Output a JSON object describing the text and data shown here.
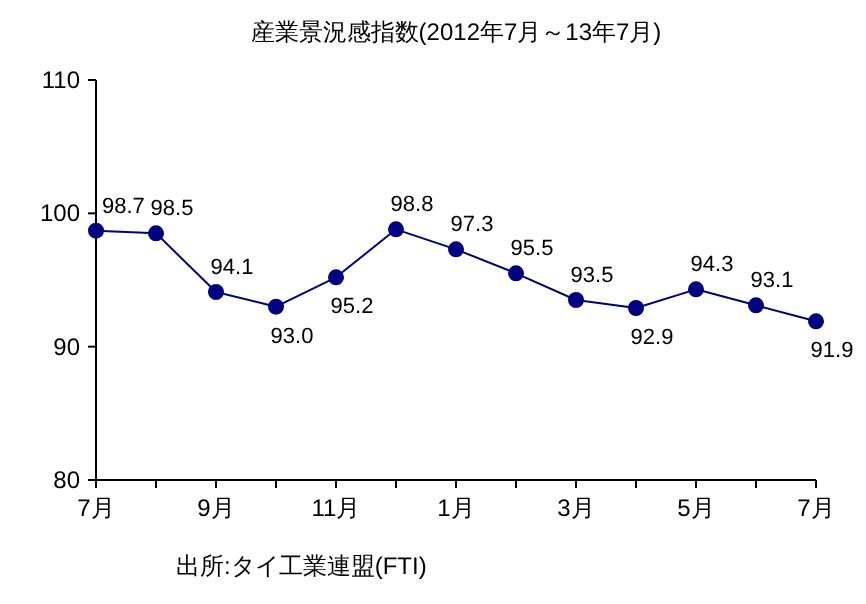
{
  "chart_data": {
    "type": "line",
    "title": "産業景況感指数(2012年7月～13年7月)",
    "categories": [
      "7月",
      null,
      "9月",
      null,
      "11月",
      null,
      "1月",
      null,
      "3月",
      null,
      "5月",
      null,
      "7月"
    ],
    "series": [
      {
        "color": "#000080",
        "values": [
          98.7,
          98.5,
          94.1,
          93.0,
          95.2,
          98.8,
          97.3,
          95.5,
          93.5,
          92.9,
          94.3,
          93.1,
          91.9
        ],
        "value_labels": [
          "98.7",
          "98.5",
          "94.1",
          "93.0",
          "95.2",
          "98.8",
          "97.3",
          "95.5",
          "93.5",
          "92.9",
          "94.3",
          "93.1",
          "91.9"
        ]
      }
    ],
    "ylim": [
      80,
      110
    ],
    "yticks": [
      80,
      90,
      100,
      110
    ],
    "marker": "circle",
    "grid": false,
    "legend": false,
    "annotations": [
      "出所:タイ工業連盟(FTI)"
    ]
  }
}
